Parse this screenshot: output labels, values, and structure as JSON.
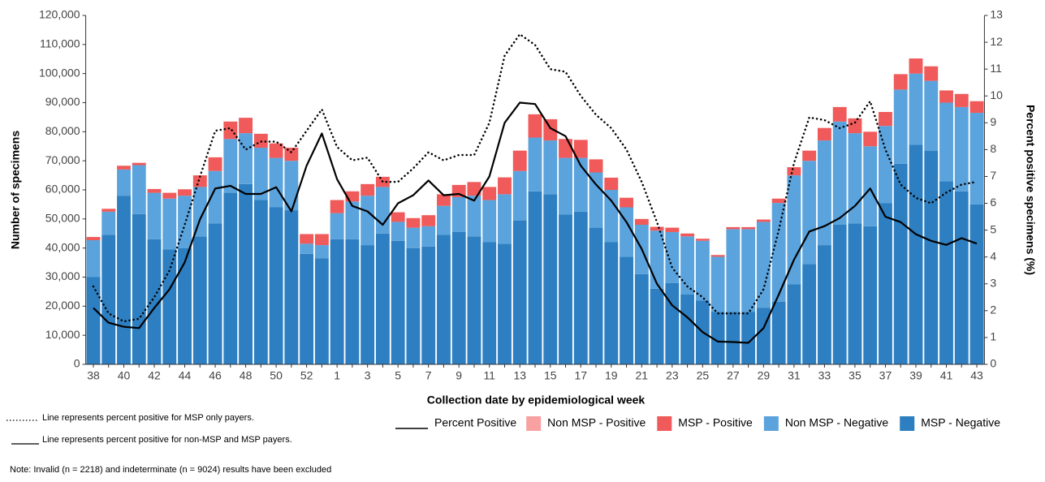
{
  "chart_data": {
    "type": "bar",
    "ylabel": "Number of specimens",
    "y2label": "Percent positive specimens (%)",
    "xlabel": "Collection date by epidemiological week",
    "notes": [
      "Line represents percent positive for MSP only payers.",
      "Line represents percent positive for non-MSP and MSP payers.",
      "Note: Invalid (n = 2218) and indeterminate (n = 9024) results have been excluded"
    ],
    "categories": [
      "38",
      null,
      "40",
      null,
      "42",
      null,
      "44",
      null,
      "46",
      null,
      "48",
      null,
      "50",
      null,
      "52",
      null,
      "1",
      null,
      "3",
      null,
      "5",
      null,
      "7",
      null,
      "9",
      null,
      "11",
      null,
      "13",
      null,
      "15",
      null,
      "17",
      null,
      "19",
      null,
      "21",
      null,
      "23",
      null,
      "25",
      null,
      "27",
      null,
      "29",
      null,
      "31",
      null,
      "33",
      null,
      "35",
      null,
      "37",
      null,
      "39",
      null,
      "41",
      null,
      "43"
    ],
    "ylim": [
      0,
      120000
    ],
    "yticks": [
      0,
      {
        "value": 10000,
        "label": "10,000"
      },
      {
        "value": 20000,
        "label": "20,000"
      },
      {
        "value": 30000,
        "label": "30,000"
      },
      {
        "value": 40000,
        "label": "40,000"
      },
      {
        "value": 50000,
        "label": "50,000"
      },
      {
        "value": 60000,
        "label": "60,000"
      },
      {
        "value": 70000,
        "label": "70,000"
      },
      {
        "value": 80000,
        "label": "80,000"
      },
      {
        "value": 90000,
        "label": "90,000"
      },
      {
        "value": 100000,
        "label": "100,000"
      },
      {
        "value": 110000,
        "label": "110,000"
      },
      {
        "value": 120000,
        "label": "120,000"
      }
    ],
    "y2lim": [
      0,
      13
    ],
    "y2ticks": [
      0,
      1,
      2,
      3,
      4,
      5,
      6,
      7,
      8,
      9,
      10,
      11,
      12,
      13
    ],
    "stacked": true,
    "series": [
      {
        "name": "MSP - Negative",
        "color": "#2e7fc1",
        "values": [
          30000,
          44500,
          58000,
          51700,
          43000,
          39500,
          40000,
          44000,
          48500,
          59000,
          62000,
          56500,
          54000,
          53000,
          38000,
          36500,
          43000,
          43000,
          41000,
          45000,
          42500,
          40000,
          40500,
          44500,
          45500,
          44000,
          42000,
          41500,
          49500,
          59500,
          58500,
          51500,
          52500,
          47000,
          42000,
          37000,
          31000,
          26000,
          28000,
          24000,
          22000,
          18000,
          18000,
          18000,
          19500,
          21500,
          27500,
          34500,
          41000,
          48000,
          48500,
          47500,
          55500,
          69000,
          75500,
          73500,
          63000,
          59500,
          55000
        ]
      },
      {
        "name": "Non MSP - Negative",
        "color": "#5ba3dd",
        "values": [
          12700,
          8000,
          9000,
          16800,
          16000,
          17500,
          18000,
          17000,
          18000,
          18500,
          17500,
          18000,
          17000,
          17000,
          3500,
          4500,
          9000,
          13000,
          17000,
          16000,
          6500,
          7000,
          7000,
          10000,
          12000,
          14000,
          14500,
          17000,
          17000,
          18500,
          18500,
          19500,
          18500,
          19000,
          18000,
          17000,
          17000,
          20000,
          17500,
          20000,
          20500,
          19000,
          28500,
          28500,
          29500,
          34000,
          37500,
          35500,
          36000,
          35500,
          31000,
          27500,
          26500,
          25500,
          24500,
          24000,
          27000,
          29000,
          31500
        ]
      },
      {
        "name": "MSP - Positive",
        "color": "#f05a5a",
        "values": [
          1100,
          1000,
          1300,
          800,
          1300,
          2000,
          2200,
          4000,
          4700,
          6000,
          5300,
          4800,
          5000,
          4500,
          3300,
          3800,
          4500,
          3500,
          4000,
          3500,
          3300,
          3300,
          3800,
          4000,
          4200,
          4700,
          4500,
          5800,
          7000,
          8000,
          7300,
          6500,
          6200,
          4500,
          4200,
          3300,
          2000,
          1300,
          1500,
          1000,
          700,
          600,
          700,
          700,
          800,
          1500,
          2800,
          3500,
          4300,
          5000,
          5100,
          5000,
          4800,
          5300,
          5200,
          5000,
          4200,
          4500,
          4000
        ]
      },
      {
        "name": "Non MSP - Positive",
        "color": "#f7a1a1",
        "values": [
          0,
          0,
          0,
          0,
          0,
          0,
          0,
          0,
          0,
          0,
          0,
          0,
          0,
          0,
          0,
          0,
          0,
          0,
          0,
          0,
          0,
          0,
          0,
          0,
          0,
          0,
          0,
          0,
          0,
          0,
          0,
          0,
          0,
          0,
          0,
          0,
          0,
          0,
          0,
          0,
          0,
          0,
          0,
          0,
          0,
          0,
          0,
          0,
          0,
          0,
          0,
          0,
          0,
          0,
          0,
          0,
          0,
          0,
          0
        ]
      },
      {
        "name": "Percent Positive",
        "type": "line",
        "axis": "y2",
        "color": "#000000",
        "dash": "solid",
        "values": [
          2.1,
          1.55,
          1.4,
          1.35,
          2.1,
          2.8,
          3.8,
          5.4,
          6.55,
          6.65,
          6.35,
          6.35,
          6.6,
          5.7,
          7.4,
          8.6,
          6.9,
          5.9,
          5.7,
          5.2,
          6.0,
          6.3,
          6.85,
          6.3,
          6.35,
          6.1,
          7.0,
          9.0,
          9.75,
          9.7,
          8.8,
          8.5,
          7.4,
          6.7,
          6.1,
          5.3,
          4.3,
          3.0,
          2.2,
          1.75,
          1.2,
          0.85,
          0.83,
          0.8,
          1.35,
          2.6,
          3.9,
          4.95,
          5.15,
          5.45,
          5.9,
          6.55,
          5.5,
          5.3,
          4.85,
          4.6,
          4.45,
          4.7,
          4.5
        ]
      },
      {
        "type": "line",
        "axis": "y2",
        "color": "#000000",
        "dash": "dotted",
        "values": [
          2.9,
          1.9,
          1.6,
          1.7,
          2.5,
          3.5,
          5.2,
          7.0,
          8.7,
          8.8,
          8.0,
          8.3,
          8.3,
          7.9,
          8.7,
          9.5,
          8.1,
          7.6,
          7.7,
          6.8,
          6.8,
          7.3,
          7.9,
          7.6,
          7.8,
          7.8,
          9.0,
          11.5,
          12.3,
          11.9,
          11.0,
          10.9,
          10.0,
          9.3,
          8.8,
          8.0,
          6.8,
          5.3,
          3.6,
          2.9,
          2.5,
          1.9,
          1.9,
          1.9,
          2.8,
          5.0,
          7.5,
          9.2,
          9.1,
          8.8,
          9.0,
          9.8,
          8.0,
          6.7,
          6.2,
          6.0,
          6.4,
          6.7,
          6.8
        ]
      }
    ]
  }
}
